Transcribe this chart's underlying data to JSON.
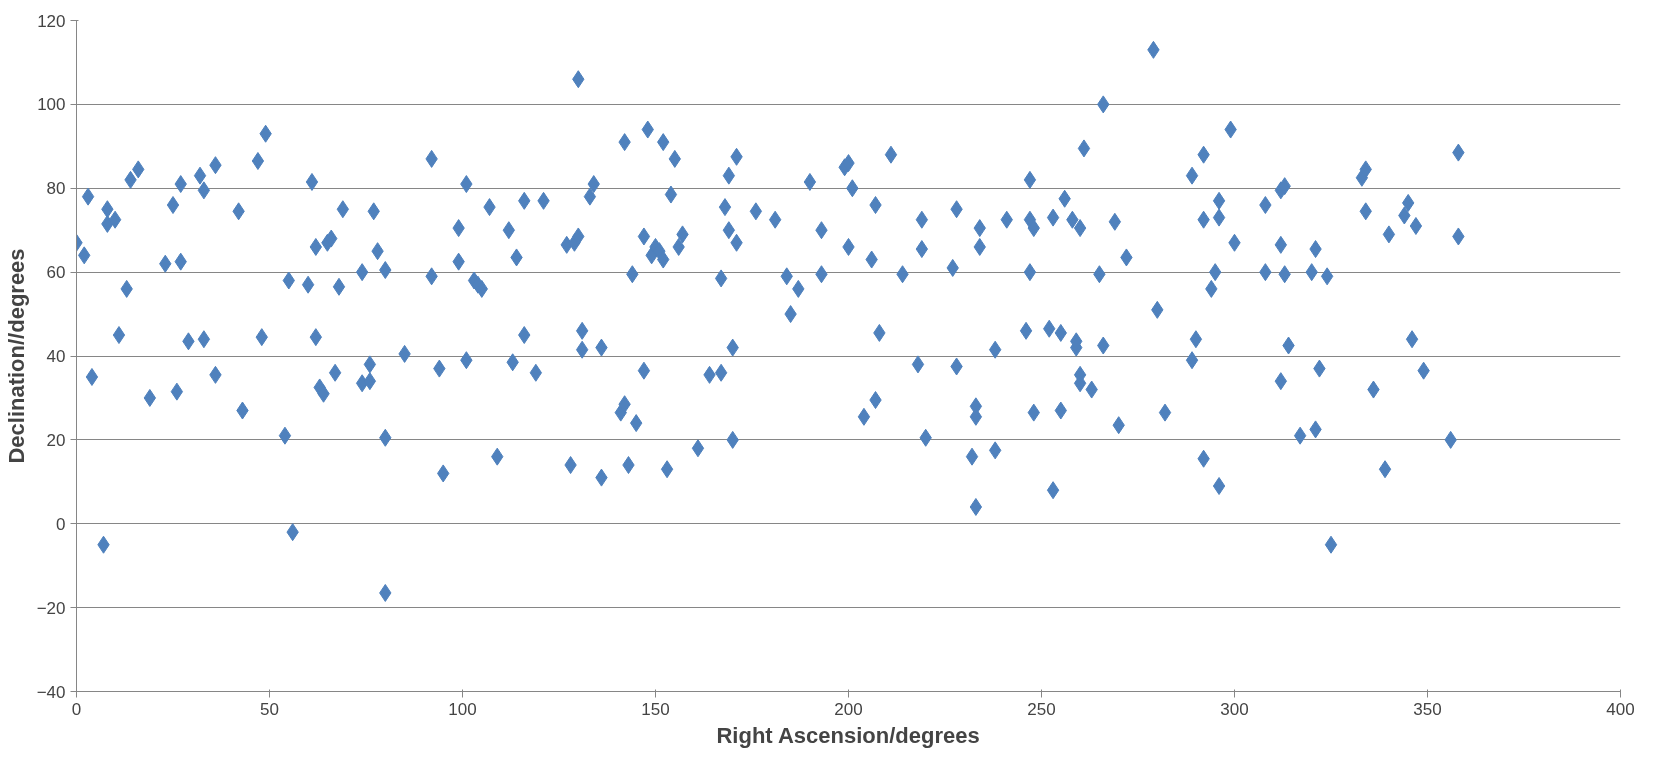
{
  "chart_data": {
    "type": "scatter",
    "xlabel": "Right Ascension/degrees",
    "ylabel": "Declination//degrees",
    "xlim": [
      0,
      400
    ],
    "xticks": [
      0,
      50,
      100,
      150,
      200,
      250,
      300,
      350,
      400
    ],
    "ylim": [
      -40,
      120
    ],
    "yticks": [
      -40,
      -20,
      0,
      20,
      40,
      60,
      80,
      100,
      120
    ],
    "grid": "y",
    "marker": "diamond",
    "series": [
      {
        "color": "#4f81bd",
        "x": [
          0,
          2,
          3,
          4,
          7,
          8,
          8,
          10,
          11,
          13,
          14,
          16,
          19,
          23,
          25,
          26,
          27,
          27,
          29,
          32,
          33,
          33,
          36,
          36,
          42,
          43,
          47,
          48,
          49,
          54,
          55,
          56,
          60,
          61,
          62,
          62,
          63,
          64,
          65,
          66,
          67,
          68,
          69,
          74,
          74,
          76,
          76,
          77,
          78,
          80,
          80,
          80,
          85,
          92,
          92,
          94,
          95,
          99,
          99,
          101,
          101,
          103,
          104,
          105,
          107,
          109,
          112,
          113,
          114,
          116,
          116,
          119,
          121,
          127,
          128,
          129,
          130,
          130,
          131,
          131,
          133,
          134,
          136,
          136,
          141,
          142,
          142,
          143,
          144,
          145,
          147,
          147,
          148,
          149,
          150,
          151,
          152,
          152,
          153,
          154,
          155,
          156,
          157,
          161,
          164,
          167,
          167,
          168,
          169,
          169,
          170,
          170,
          171,
          171,
          176,
          181,
          184,
          185,
          187,
          190,
          193,
          193,
          199,
          200,
          200,
          201,
          204,
          206,
          207,
          207,
          208,
          211,
          214,
          218,
          219,
          219,
          220,
          227,
          228,
          228,
          232,
          233,
          233,
          233,
          234,
          234,
          238,
          238,
          241,
          246,
          247,
          247,
          247,
          248,
          248,
          252,
          253,
          253,
          255,
          255,
          256,
          258,
          259,
          259,
          260,
          261,
          260,
          260,
          263,
          265,
          266,
          266,
          269,
          270,
          272,
          279,
          280,
          282,
          289,
          289,
          290,
          292,
          292,
          292,
          294,
          295,
          296,
          296,
          296,
          299,
          300,
          308,
          308,
          312,
          312,
          313,
          312,
          313,
          314,
          317,
          320,
          321,
          321,
          322,
          324,
          325,
          333,
          334,
          334,
          336,
          339,
          340,
          344,
          345,
          346,
          347,
          349,
          356,
          358,
          358
        ],
        "values": [
          67,
          64,
          78,
          35,
          -5,
          75,
          71.5,
          72.5,
          45,
          56,
          82,
          84.5,
          30,
          62,
          76,
          31.5,
          62.5,
          81,
          43.5,
          83,
          79.5,
          44,
          85.5,
          35.5,
          74.5,
          27,
          86.5,
          44.5,
          93,
          21,
          58,
          -2,
          57,
          81.5,
          44.5,
          66,
          32.5,
          31,
          67,
          68,
          36,
          56.5,
          75,
          33.5,
          60,
          34,
          38,
          74.5,
          65,
          60.5,
          20.5,
          -16.5,
          40.5,
          59,
          87,
          37,
          12,
          62.5,
          70.5,
          39,
          81,
          58,
          57,
          56,
          75.5,
          16,
          70,
          38.5,
          63.5,
          77,
          45,
          36,
          77,
          66.5,
          14,
          67,
          68.5,
          106,
          46,
          41.5,
          78,
          81,
          42,
          11,
          26.5,
          28.5,
          91,
          14,
          59.5,
          24,
          36.5,
          68.5,
          94,
          64,
          66,
          65,
          63,
          91,
          13,
          78.5,
          87,
          66,
          69,
          18,
          35.5,
          36,
          58.5,
          75.5,
          83,
          70,
          42,
          20,
          67,
          87.5,
          74.5,
          72.5,
          59,
          50,
          56,
          81.5,
          70,
          59.5,
          85,
          86,
          66,
          80,
          25.5,
          63,
          29.5,
          76,
          45.5,
          88,
          59.5,
          38,
          72.5,
          65.5,
          20.5,
          61,
          75,
          37.5,
          16,
          28,
          25.5,
          4,
          66,
          70.5,
          41.5,
          17.5,
          72.5,
          46,
          60,
          82,
          72.5,
          70.5,
          26.5,
          46.5,
          8,
          73,
          45.5,
          27,
          77.5,
          72.5,
          42,
          43.5,
          70.5,
          89.5,
          35.5,
          33.5,
          32,
          59.5,
          100,
          42.5,
          72,
          23.5,
          63.5,
          113,
          51,
          26.5,
          83,
          39,
          44,
          88,
          72.5,
          15.5,
          56,
          60,
          73,
          77,
          9,
          94,
          67,
          76,
          60,
          79.5,
          66.5,
          80.5,
          34,
          59.5,
          42.5,
          21,
          60,
          65.5,
          22.5,
          37,
          59,
          -5,
          82.5,
          84.5,
          74.5,
          32,
          13,
          69,
          73.5,
          76.5,
          44,
          71,
          36.5,
          20,
          68.5,
          88.5
        ]
      }
    ]
  }
}
